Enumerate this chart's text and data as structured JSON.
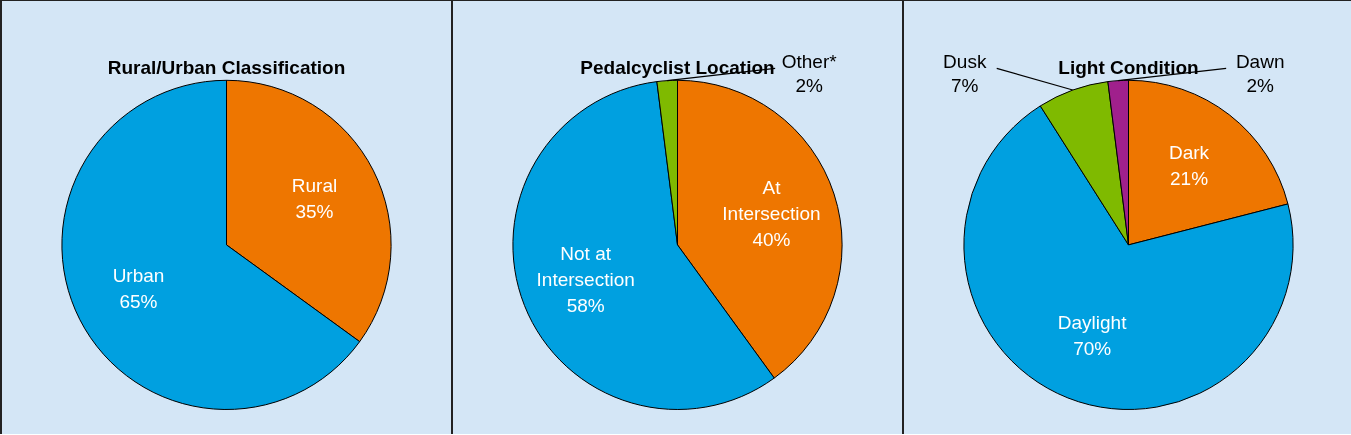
{
  "chart_data": [
    {
      "type": "pie",
      "title": "Rural/Urban Classification",
      "categories": [
        "Rural",
        "Urban"
      ],
      "values": [
        35,
        65
      ],
      "value_labels": [
        "35%",
        "65%"
      ],
      "colors": [
        "#ee7600",
        "#00a0e0"
      ],
      "legend": false
    },
    {
      "type": "pie",
      "title": "Pedalcyclist Location",
      "categories": [
        "At\nIntersection",
        "Not at\nIntersection",
        "Other*"
      ],
      "values": [
        40,
        58,
        2
      ],
      "value_labels": [
        "40%",
        "58%",
        "2%"
      ],
      "colors": [
        "#ee7600",
        "#00a0e0",
        "#7fba00"
      ],
      "legend": false
    },
    {
      "type": "pie",
      "title": "Light Condition",
      "categories": [
        "Dark",
        "Daylight",
        "Dusk",
        "Dawn"
      ],
      "values": [
        21,
        70,
        7,
        2
      ],
      "value_labels": [
        "21%",
        "70%",
        "7%",
        "2%"
      ],
      "colors": [
        "#ee7600",
        "#00a0e0",
        "#7fba00",
        "#a0208c"
      ],
      "legend": false
    }
  ]
}
